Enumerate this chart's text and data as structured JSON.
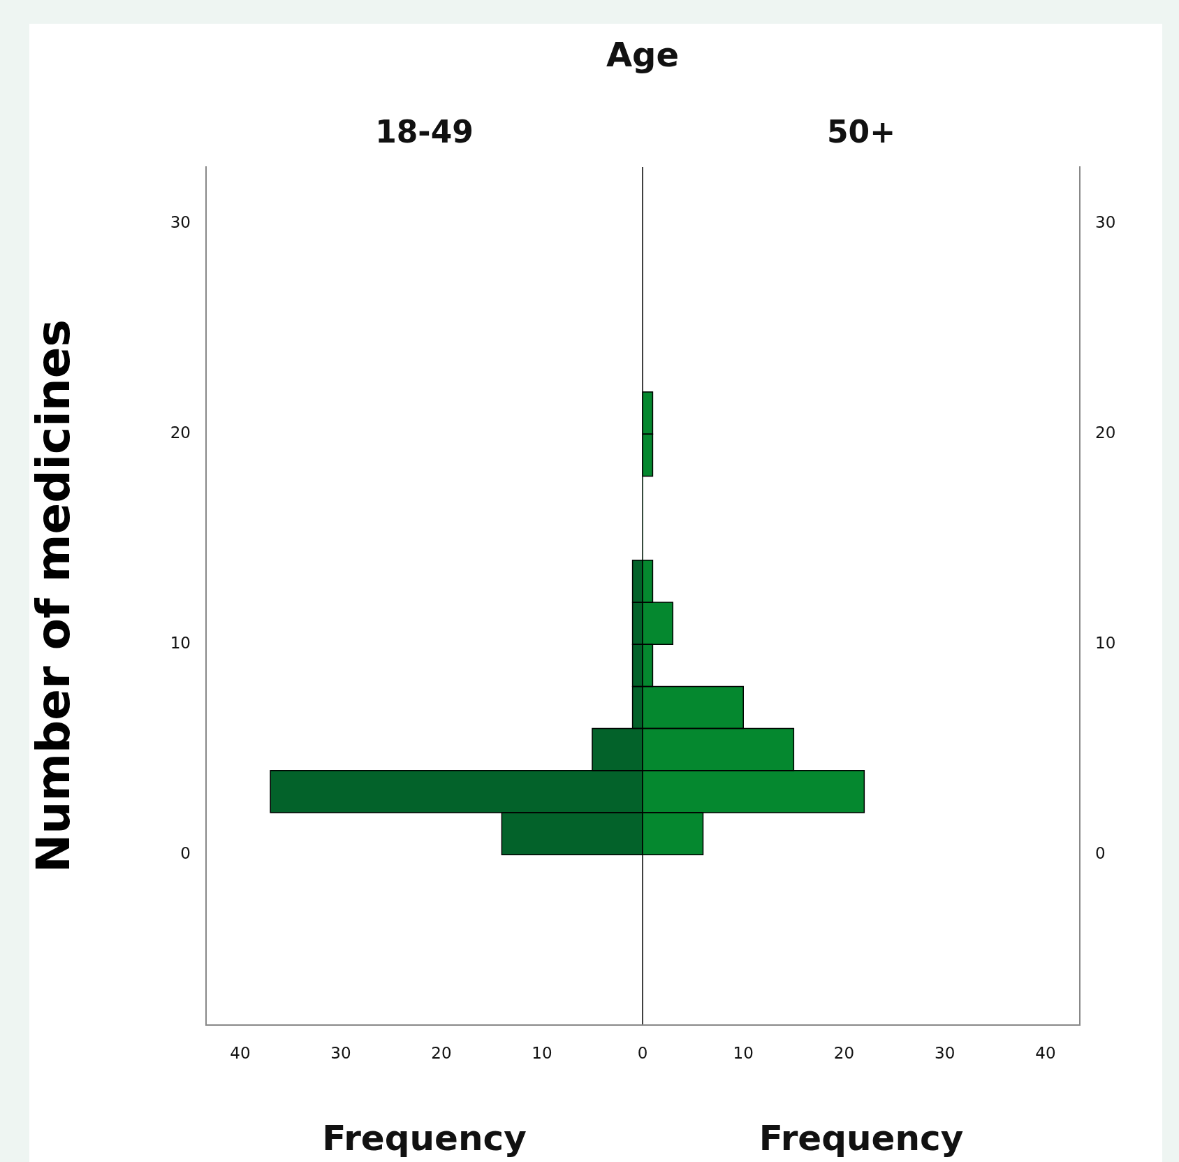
{
  "chart_data": [
    {
      "type": "histogram",
      "orientation": "horizontal",
      "title": "Age",
      "subtitle": "18-49",
      "xlabel": "Frequency",
      "ylabel": "Number of medicines",
      "bins": [
        0,
        2,
        4,
        6,
        8,
        10,
        12,
        14
      ],
      "values": [
        14,
        37,
        5,
        1,
        1,
        1,
        1
      ],
      "color": "#03622a",
      "xlim": [
        43.4,
        0
      ],
      "xticks": [
        40,
        30,
        20,
        10,
        0
      ],
      "ylim": [
        -8.1,
        32.7
      ],
      "yticks": [
        0,
        10,
        20,
        30
      ],
      "grid": false,
      "legend": false
    },
    {
      "type": "histogram",
      "orientation": "horizontal",
      "subtitle": "50+",
      "xlabel": "Frequency",
      "bins": [
        0,
        2,
        4,
        6,
        8,
        10,
        12,
        14,
        16,
        18,
        20,
        22
      ],
      "values": [
        6,
        22,
        15,
        10,
        1,
        3,
        1,
        0,
        0,
        1,
        1
      ],
      "color": "#05882f",
      "xlim": [
        0,
        43.4
      ],
      "xticks": [
        10,
        20,
        30,
        40
      ],
      "ylim": [
        -8.1,
        32.7
      ],
      "yticks": [
        0,
        10,
        20,
        30
      ],
      "grid": false,
      "legend": false
    }
  ]
}
